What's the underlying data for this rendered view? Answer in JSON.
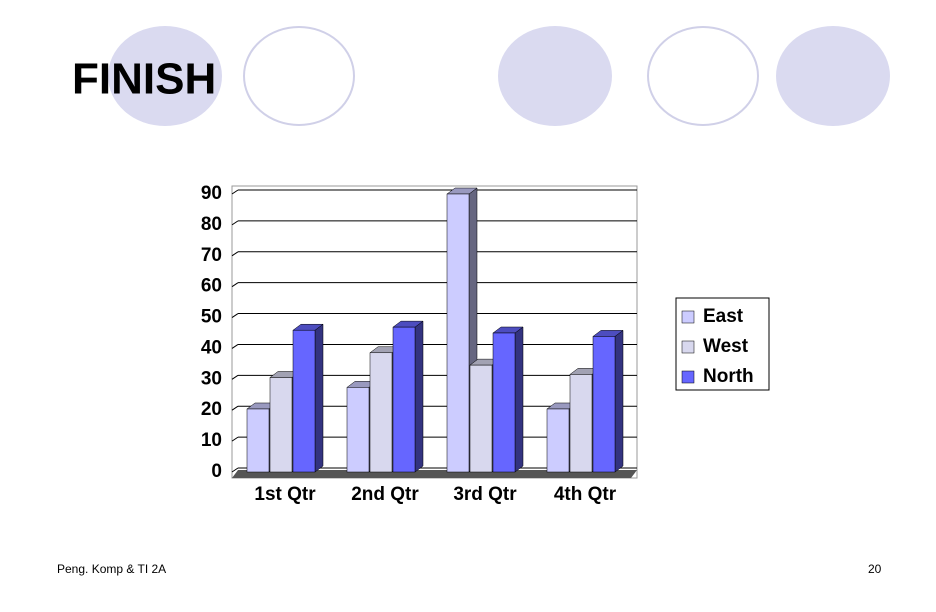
{
  "slide": {
    "title": "FINISH",
    "footer": "Peng. Komp & TI 2A",
    "page_number": "20"
  },
  "chart_data": {
    "type": "bar3d",
    "categories": [
      "1st Qtr",
      "2nd Qtr",
      "3rd Qtr",
      "4th Qtr"
    ],
    "series": [
      {
        "name": "East",
        "color": "#ccccff",
        "values": [
          20.4,
          27.4,
          90,
          20.4
        ]
      },
      {
        "name": "West",
        "color": "#d8d8ee",
        "values": [
          30.6,
          38.6,
          34.6,
          31.6
        ]
      },
      {
        "name": "North",
        "color": "#6666ff",
        "values": [
          45.9,
          46.9,
          45,
          43.9
        ]
      }
    ],
    "ylim": [
      0,
      90
    ],
    "yticks": [
      0,
      10,
      20,
      30,
      40,
      50,
      60,
      70,
      80,
      90
    ],
    "grid": true,
    "legend": "right"
  }
}
